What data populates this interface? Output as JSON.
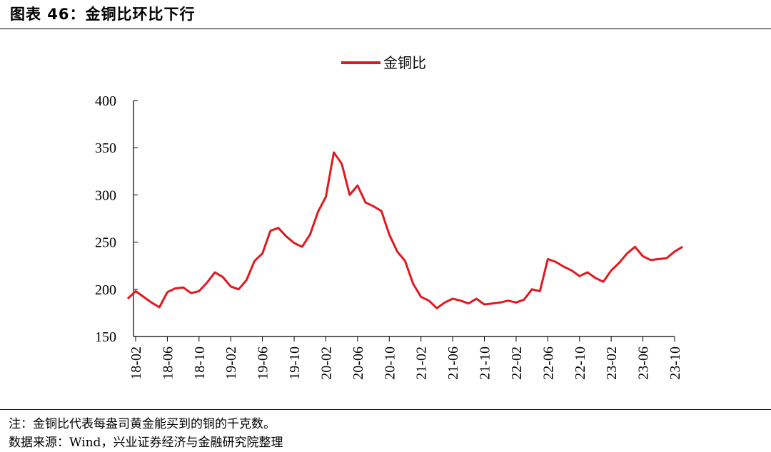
{
  "figure": {
    "title": "图表 46：金铜比环比下行",
    "note": "注：金铜比代表每盎司黄金能买到的铜的千克数。",
    "source": "数据来源：Wind，兴业证券经济与金融研究院整理"
  },
  "chart_data": {
    "type": "line",
    "title": "",
    "xlabel": "",
    "ylabel": "",
    "ylim": [
      150,
      400
    ],
    "yticks": [
      "150",
      "200",
      "250",
      "300",
      "350",
      "400"
    ],
    "xticks": [
      "18-02",
      "18-06",
      "18-10",
      "19-02",
      "19-06",
      "19-10",
      "20-02",
      "20-06",
      "20-10",
      "21-02",
      "21-06",
      "21-10",
      "22-02",
      "22-06",
      "22-10",
      "23-02",
      "23-06",
      "23-10"
    ],
    "grid": false,
    "legend_position": "top-center",
    "colors": {
      "series": "#e0191e"
    },
    "series": [
      {
        "name": "金铜比",
        "x": [
          "18-01",
          "18-02",
          "18-03",
          "18-04",
          "18-05",
          "18-06",
          "18-07",
          "18-08",
          "18-09",
          "18-10",
          "18-11",
          "18-12",
          "19-01",
          "19-02",
          "19-03",
          "19-04",
          "19-05",
          "19-06",
          "19-07",
          "19-08",
          "19-09",
          "19-10",
          "19-11",
          "19-12",
          "20-01",
          "20-02",
          "20-03",
          "20-04",
          "20-05",
          "20-06",
          "20-07",
          "20-08",
          "20-09",
          "20-10",
          "20-11",
          "20-12",
          "21-01",
          "21-02",
          "21-03",
          "21-04",
          "21-05",
          "21-06",
          "21-07",
          "21-08",
          "21-09",
          "21-10",
          "21-11",
          "21-12",
          "22-01",
          "22-02",
          "22-03",
          "22-04",
          "22-05",
          "22-06",
          "22-07",
          "22-08",
          "22-09",
          "22-10",
          "22-11",
          "22-12",
          "23-01",
          "23-02",
          "23-03",
          "23-04",
          "23-05",
          "23-06",
          "23-07",
          "23-08",
          "23-09",
          "23-10",
          "23-11"
        ],
        "values": [
          190,
          198,
          192,
          186,
          181,
          197,
          201,
          202,
          196,
          198,
          207,
          218,
          213,
          203,
          200,
          210,
          230,
          238,
          262,
          265,
          256,
          249,
          245,
          258,
          282,
          298,
          345,
          333,
          300,
          310,
          292,
          288,
          283,
          258,
          240,
          230,
          206,
          192,
          188,
          180,
          186,
          190,
          188,
          185,
          190,
          184,
          185,
          186,
          188,
          186,
          189,
          200,
          198,
          232,
          229,
          224,
          220,
          214,
          218,
          212,
          208,
          220,
          228,
          238,
          245,
          235,
          231,
          232,
          233,
          240,
          245
        ]
      }
    ]
  }
}
